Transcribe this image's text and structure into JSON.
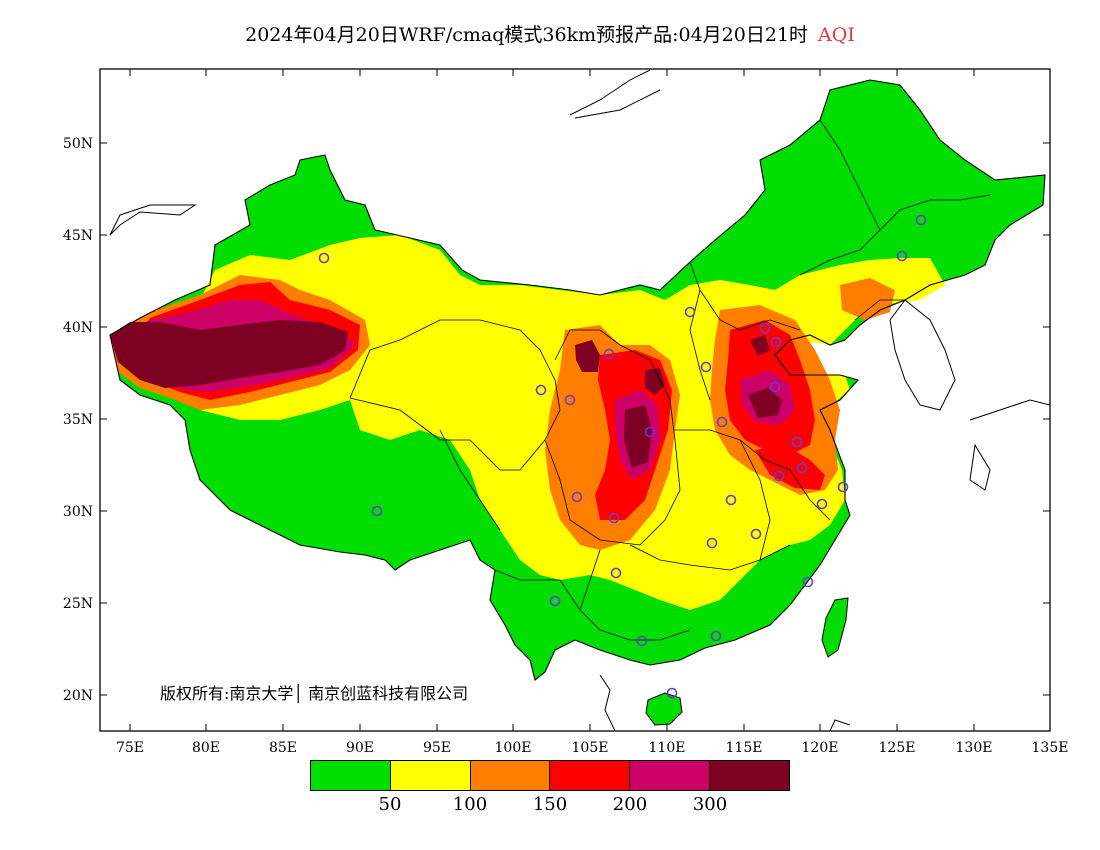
{
  "title": {
    "text": "2024年04月20日WRF/cmaq模式36km预报产品:04月20日21时",
    "variable": "AQI"
  },
  "copyright": {
    "prefix": "版权所有:南京大学",
    "company": "南京创蓝科技有限公司"
  },
  "axes": {
    "y_ticks": [
      "50N",
      "45N",
      "40N",
      "35N",
      "30N",
      "25N",
      "20N"
    ],
    "x_ticks": [
      "75E",
      "80E",
      "85E",
      "90E",
      "95E",
      "100E",
      "105E",
      "110E",
      "115E",
      "120E",
      "125E",
      "130E",
      "135E"
    ]
  },
  "legend": {
    "colors": [
      "#00dd00",
      "#ffff00",
      "#ff7e00",
      "#ff0000",
      "#cc0066",
      "#7e0023"
    ],
    "labels": [
      "50",
      "100",
      "150",
      "200",
      "300"
    ]
  },
  "colors": {
    "good": "#00dd00",
    "moderate": "#ffff00",
    "unhealthy_sensitive": "#ff7e00",
    "unhealthy": "#ff0000",
    "very_unhealthy": "#cc0066",
    "hazardous": "#7e0023",
    "station_marker": "#6a3bd1"
  }
}
